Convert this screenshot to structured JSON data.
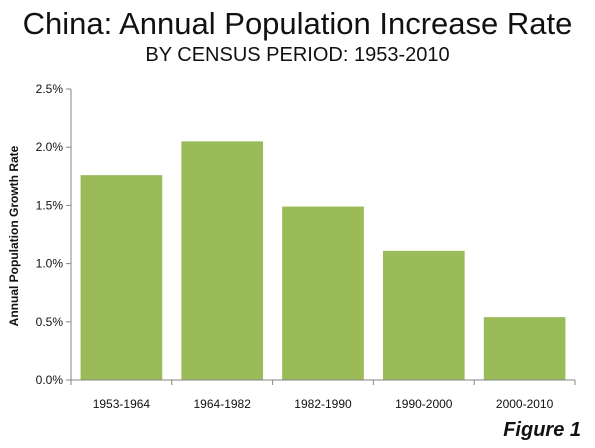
{
  "header": {
    "title": "China: Annual Population Increase Rate",
    "subtitle": "BY CENSUS PERIOD: 1953-2010"
  },
  "footer": {
    "figure_label": "Figure 1"
  },
  "colors": {
    "bar": "#9BBB59",
    "axis": "#868686",
    "text": "#111111"
  },
  "chart_data": {
    "type": "bar",
    "title": "China: Annual Population Increase Rate",
    "subtitle": "BY CENSUS PERIOD: 1953-2010",
    "categories": [
      "1953-1964",
      "1964-1982",
      "1982-1990",
      "1990-2000",
      "2000-2010"
    ],
    "values": [
      1.76,
      2.05,
      1.49,
      1.11,
      0.54
    ],
    "xlabel": "",
    "ylabel": "Annual Population Growth Rate",
    "ylim": [
      0,
      2.5
    ],
    "yticks": [
      0,
      0.5,
      1.0,
      1.5,
      2.0,
      2.5
    ],
    "ytick_labels": [
      "0.0%",
      "0.5%",
      "1.0%",
      "1.5%",
      "2.0%",
      "2.5%"
    ],
    "grid": false,
    "legend": "none"
  }
}
